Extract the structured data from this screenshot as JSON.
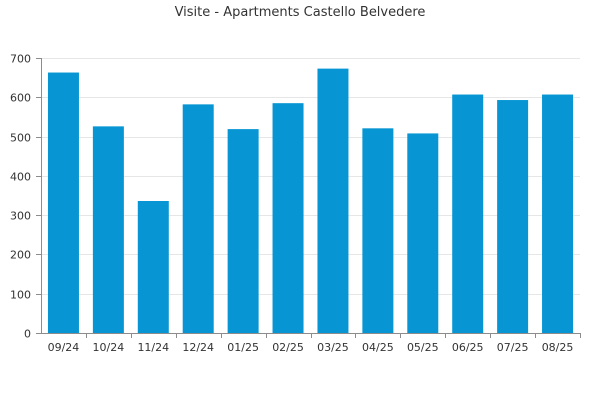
{
  "chart_data": {
    "type": "bar",
    "title": "Visite - Apartments Castello Belvedere",
    "xlabel": "",
    "ylabel": "",
    "categories": [
      "09/24",
      "10/24",
      "11/24",
      "12/24",
      "01/25",
      "02/25",
      "03/25",
      "04/25",
      "05/25",
      "06/25",
      "07/25",
      "08/25"
    ],
    "values": [
      663,
      526,
      336,
      582,
      519,
      585,
      673,
      521,
      508,
      607,
      593,
      607
    ],
    "ylim": [
      0,
      700
    ],
    "yticks": [
      0,
      100,
      200,
      300,
      400,
      500,
      600,
      700
    ],
    "grid": true,
    "legend": "none",
    "colors": {
      "bar": "#0796d3",
      "grid": "#e6e6e6",
      "axis": "#8c8c8c",
      "text": "#333333"
    }
  }
}
